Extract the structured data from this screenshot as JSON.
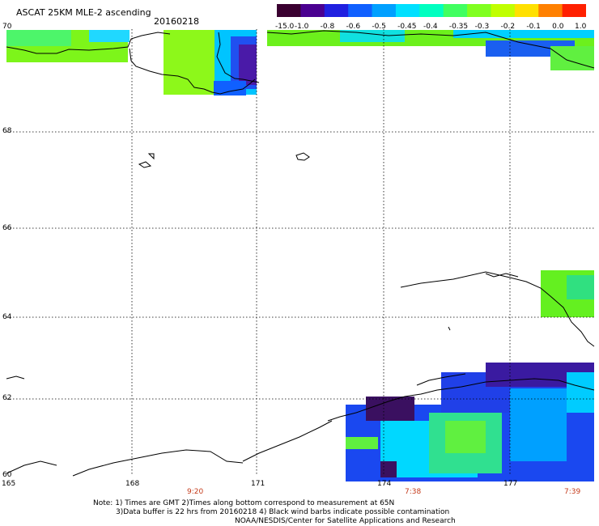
{
  "header": {
    "title": "ASCAT 25KM MLE-2 ascending",
    "date": "20160218"
  },
  "colorbar": {
    "tick_labels": [
      "-15.0",
      "-1.0",
      "-0.8",
      "-0.6",
      "-0.5",
      "-0.45",
      "-0.4",
      "-0.35",
      "-0.3",
      "-0.2",
      "-0.1",
      "0.0",
      "1.0"
    ],
    "colors": [
      "#3a0030",
      "#4a0090",
      "#2020e0",
      "#1060ff",
      "#00a0ff",
      "#00e0ff",
      "#00ffc0",
      "#40ff60",
      "#80ff20",
      "#c0ff00",
      "#ffe000",
      "#ff8000",
      "#ff2000"
    ]
  },
  "axes": {
    "lat_labels": [
      "70",
      "68",
      "66",
      "64",
      "62",
      "60"
    ],
    "lon_labels": [
      "165",
      "168",
      "171",
      "174",
      "177"
    ],
    "time_labels": [
      "9:20",
      "7:38",
      "7:39"
    ]
  },
  "footer": {
    "note_line1": "Note: 1) Times are GMT 2)Times along bottom correspond to measurement at 65N",
    "note_line2": "3)Data buffer is 22 hrs from 20160218 4) Black wind barbs indicate possible contamination",
    "note_line3": "NOAA/NESDIS/Center for Satellite Applications and Research"
  }
}
